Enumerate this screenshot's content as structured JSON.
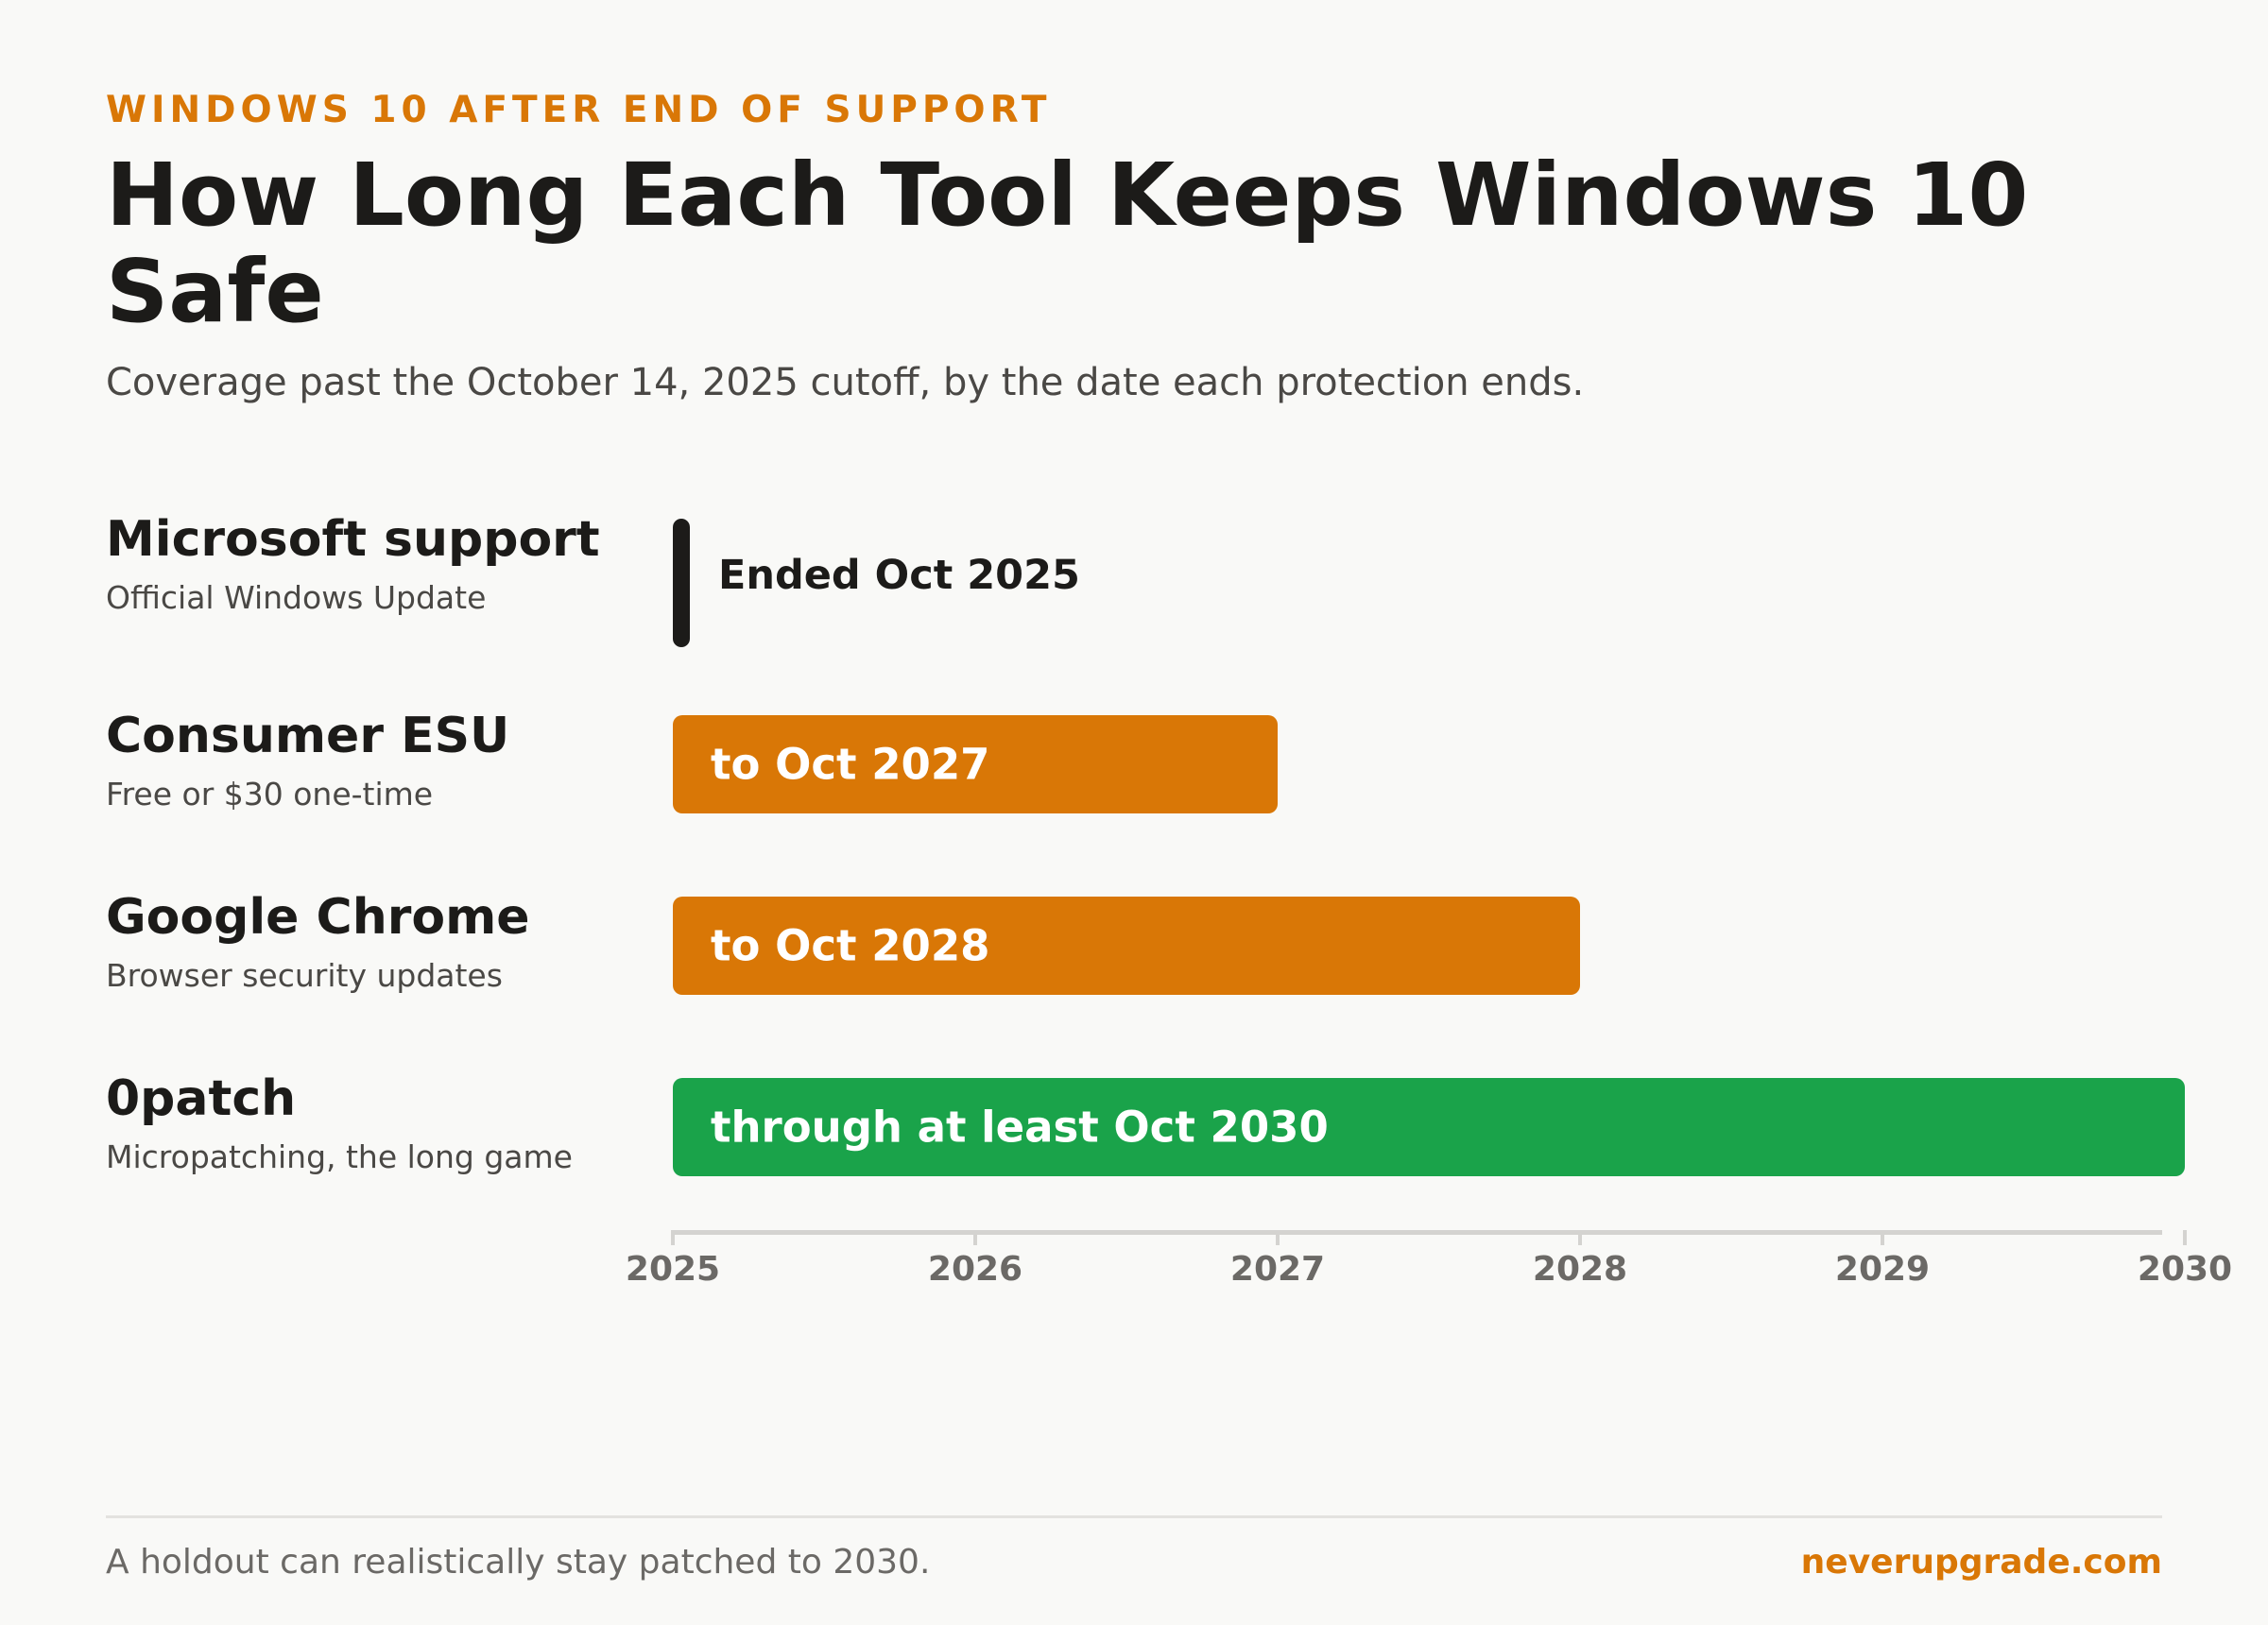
{
  "header": {
    "eyebrow": "WINDOWS 10 AFTER END OF SUPPORT",
    "title": "How Long Each Tool Keeps Windows 10 Safe",
    "subtitle": "Coverage past the October 14, 2025 cutoff, by the date each protection ends."
  },
  "chart_data": {
    "type": "bar",
    "orientation": "horizontal",
    "x_axis": {
      "min": 2025,
      "max": 2030,
      "ticks": [
        "2025",
        "2026",
        "2027",
        "2028",
        "2029",
        "2030"
      ]
    },
    "grid": false,
    "legend": "none",
    "bars": [
      {
        "name": "Microsoft support",
        "description": "Official Windows Update",
        "start": 2025,
        "end": 2025,
        "label": "Ended Oct 2025",
        "style": "marker",
        "color": "#1c1b19"
      },
      {
        "name": "Consumer ESU",
        "description": "Free or $30 one-time",
        "start": 2025,
        "end": 2027,
        "label": "to Oct 2027",
        "style": "bar",
        "color": "#d97706"
      },
      {
        "name": "Google Chrome",
        "description": "Browser security updates",
        "start": 2025,
        "end": 2028,
        "label": "to Oct 2028",
        "style": "bar",
        "color": "#d97706"
      },
      {
        "name": "0patch",
        "description": "Micropatching, the long game",
        "start": 2025,
        "end": 2030,
        "label": "through at least Oct 2030",
        "style": "bar",
        "color": "#1aa34a"
      }
    ]
  },
  "footer": {
    "note": "A holdout can realistically stay patched to 2030.",
    "brand": "neverupgrade.com"
  }
}
